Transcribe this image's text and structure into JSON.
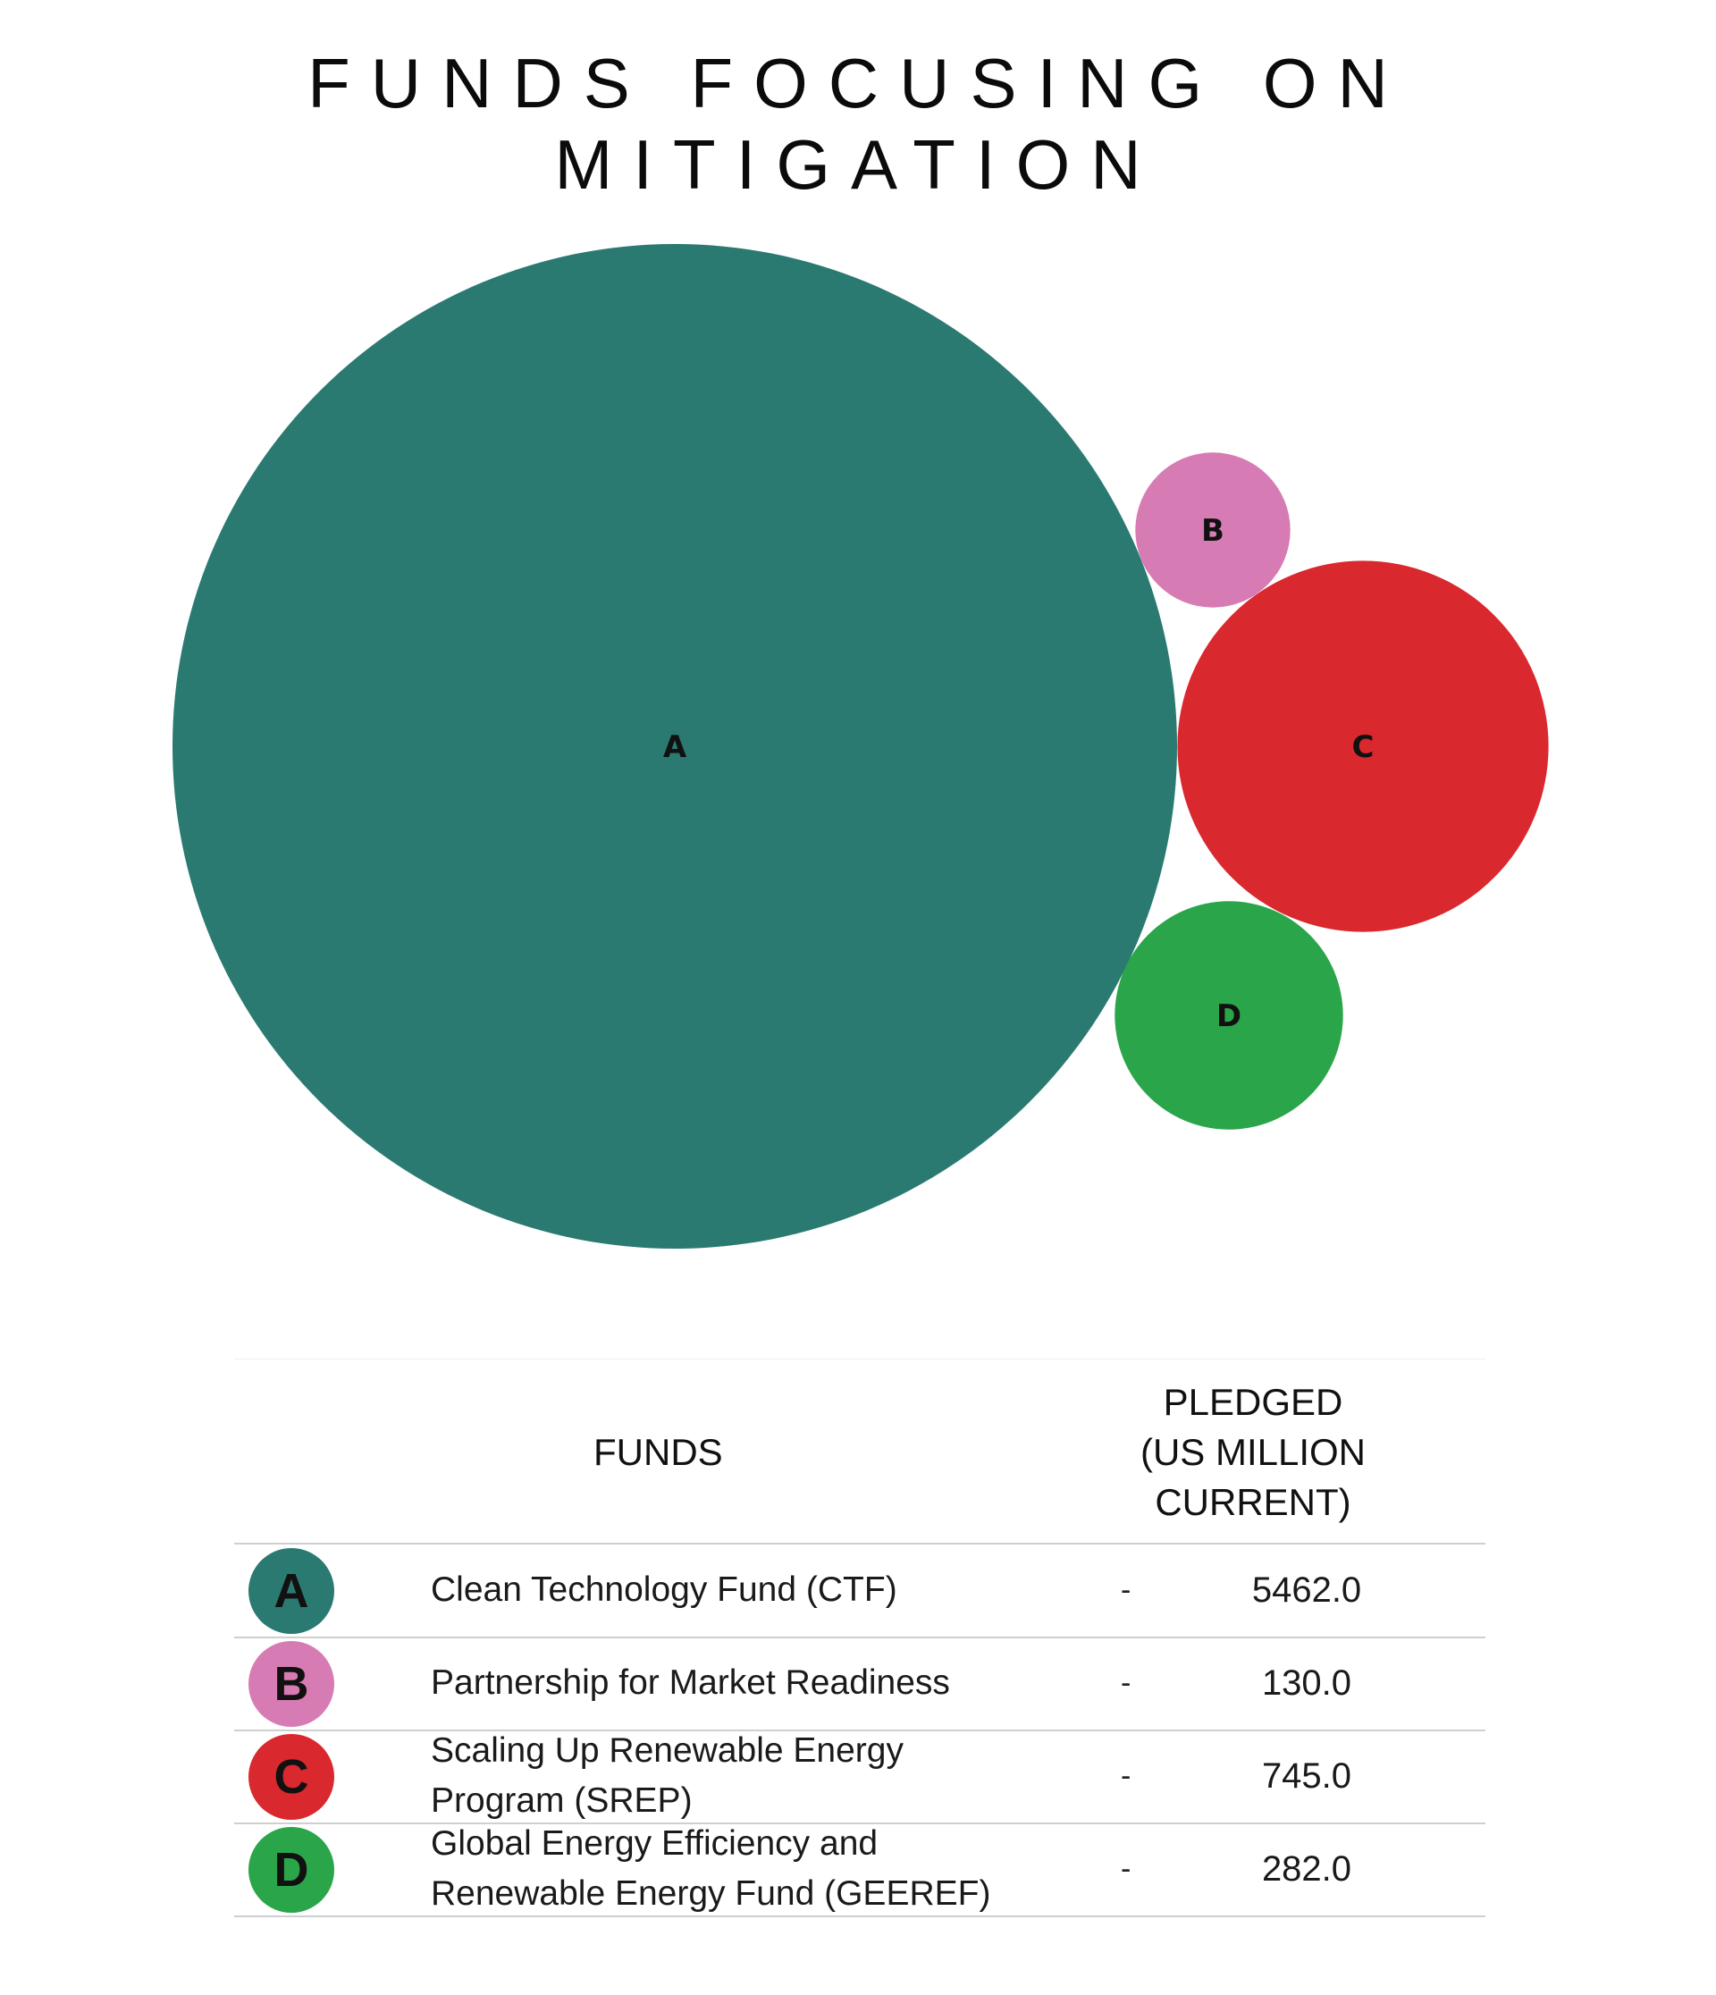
{
  "title": "FUNDS FOCUSING ON MITIGATION",
  "chart_data": {
    "type": "bubble",
    "unit": "US MILLION CURRENT",
    "points": [
      {
        "label": "A",
        "name": "Clean Technology Fund (CTF)",
        "value": 5462.0,
        "color": "#2a7a72"
      },
      {
        "label": "B",
        "name": "Partnership for Market Readiness",
        "value": 130.0,
        "color": "#d77bb4"
      },
      {
        "label": "C",
        "name": "Scaling Up Renewable Energy Program (SREP)",
        "value": 745.0,
        "color": "#d9282e"
      },
      {
        "label": "D",
        "name": "Global Energy Efficiency and Renewable Energy Fund (GEEREF)",
        "value": 282.0,
        "color": "#2aa54a"
      }
    ]
  },
  "table": {
    "header_funds": "FUNDS",
    "header_pledged_line1": "PLEDGED",
    "header_pledged_line2": "(US MILLION",
    "header_pledged_line3": "CURRENT)",
    "rows": [
      {
        "letter": "A",
        "fund": "Clean Technology Fund (CTF)",
        "dash": "-",
        "value": "5462.0"
      },
      {
        "letter": "B",
        "fund": "Partnership for Market Readiness",
        "dash": "-",
        "value": "130.0"
      },
      {
        "letter": "C",
        "fund": "Scaling Up Renewable Energy Program (SREP)",
        "dash": "-",
        "value": "745.0"
      },
      {
        "letter": "D",
        "fund": "Global Energy Efficiency and Renewable Energy Fund (GEEREF)",
        "dash": "-",
        "value": "282.0"
      }
    ]
  }
}
